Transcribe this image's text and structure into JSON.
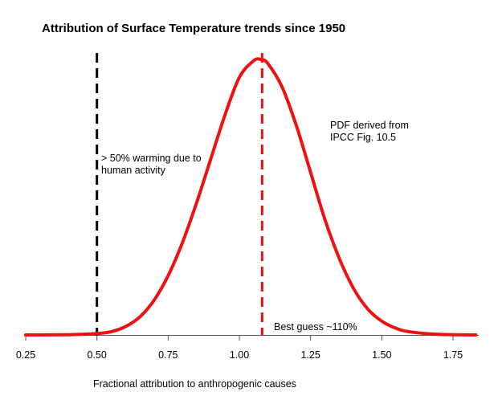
{
  "chart_data": {
    "type": "line",
    "title": "Attribution of Surface Temperature trends since 1950",
    "xlabel": "Fractional attribution to anthropogenic causes",
    "ylabel": "",
    "xlim": [
      0.25,
      1.83
    ],
    "xticks": [
      "0.25",
      "0.50",
      "0.75",
      "1.00",
      "1.25",
      "1.50",
      "1.75"
    ],
    "xtick_values": [
      0.25,
      0.5,
      0.75,
      1.0,
      1.25,
      1.5,
      1.75
    ],
    "series": [
      {
        "color": "#ee1111",
        "x": [
          0.25,
          0.4,
          0.5,
          0.55,
          0.6,
          0.65,
          0.7,
          0.75,
          0.8,
          0.85,
          0.9,
          0.95,
          1.0,
          1.05,
          1.075,
          1.1,
          1.15,
          1.2,
          1.25,
          1.3,
          1.35,
          1.4,
          1.45,
          1.5,
          1.55,
          1.6,
          1.7,
          1.83
        ],
        "y": [
          0.0,
          0.001,
          0.005,
          0.012,
          0.03,
          0.065,
          0.125,
          0.215,
          0.335,
          0.48,
          0.64,
          0.8,
          0.935,
          0.995,
          1.0,
          0.985,
          0.9,
          0.76,
          0.59,
          0.42,
          0.28,
          0.17,
          0.095,
          0.05,
          0.024,
          0.011,
          0.002,
          0.0
        ]
      }
    ],
    "vlines": [
      {
        "x": 0.5,
        "color": "#000000",
        "style": "dashed"
      },
      {
        "x": 1.08,
        "color": "#ee1111",
        "style": "dashed"
      }
    ],
    "annotations": {
      "threshold": [
        "> 50% warming due to",
        "human activity"
      ],
      "source": [
        "PDF derived from",
        "IPCC Fig. 10.5"
      ],
      "best_guess": "Best guess ~110%"
    }
  }
}
